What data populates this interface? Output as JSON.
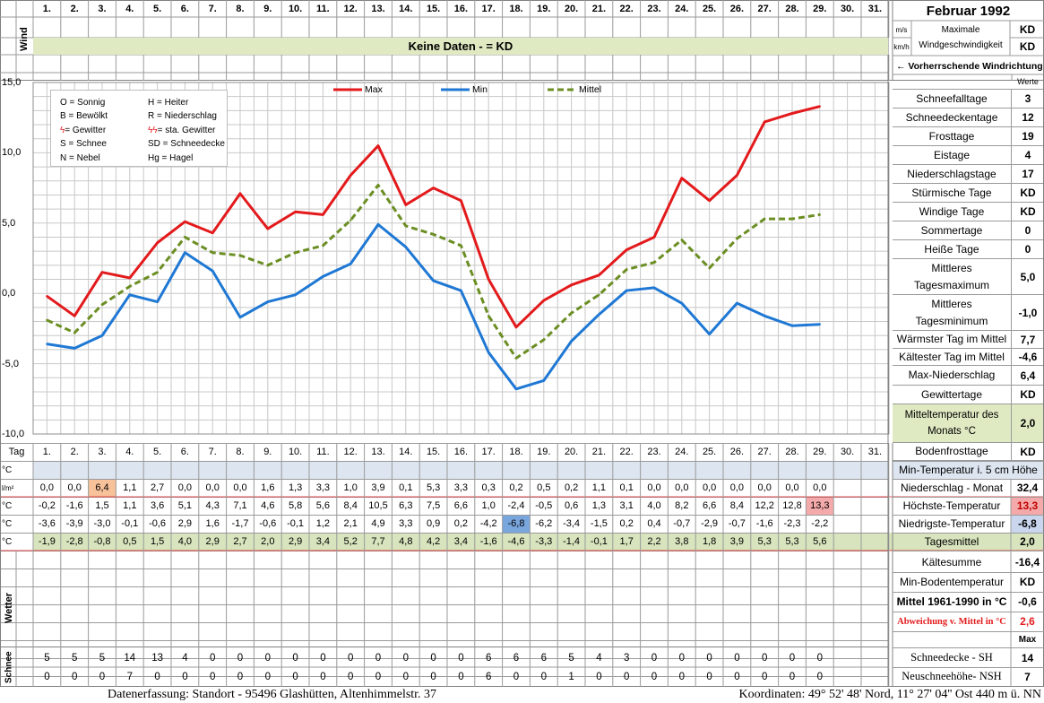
{
  "header": {
    "month_title": "Februar 1992",
    "wind_label": "Wind",
    "unit_ms": "m/s",
    "unit_kmh": "km/h",
    "max_wind_label": "Maximale Windgeschwindigkeit",
    "max_wind_value_1": "KD",
    "max_wind_value_2": "KD",
    "no_data_banner": "Keine Daten -  = KD",
    "prevailing_wind": "← Vorherrschende Windrichtung",
    "werte_label": "Werte"
  },
  "days": [
    "1.",
    "2.",
    "3.",
    "4.",
    "5.",
    "6.",
    "7.",
    "8.",
    "9.",
    "10.",
    "11.",
    "12.",
    "13.",
    "14.",
    "15.",
    "16.",
    "17.",
    "18.",
    "19.",
    "20.",
    "21.",
    "22.",
    "23.",
    "24.",
    "25.",
    "26.",
    "27.",
    "28.",
    "29.",
    "30.",
    "31."
  ],
  "legend_symbols": [
    {
      "left": "O = Sonnig",
      "right": "H = Heiter"
    },
    {
      "left": "B = Bewölkt",
      "right": "R = Niederschlag"
    },
    {
      "left": "= Gewitter",
      "right": "= sta. Gewitter"
    },
    {
      "left": "S = Schnee",
      "right": "SD = Schneedecke"
    },
    {
      "left": "N = Nebel",
      "right": "Hg = Hagel"
    }
  ],
  "colors": {
    "max": "#e31a1c",
    "min": "#1f78d4",
    "mean": "#6b8e23",
    "grid": "#c8c8c8"
  },
  "chart_data": {
    "type": "line",
    "x": [
      1,
      2,
      3,
      4,
      5,
      6,
      7,
      8,
      9,
      10,
      11,
      12,
      13,
      14,
      15,
      16,
      17,
      18,
      19,
      20,
      21,
      22,
      23,
      24,
      25,
      26,
      27,
      28,
      29
    ],
    "ylim": [
      -10,
      15
    ],
    "yticks": [
      "15,0",
      "10,0",
      "5,0",
      "0,0",
      "-5,0",
      "-10,0"
    ],
    "series": [
      {
        "name": "Max",
        "values": [
          -0.2,
          -1.6,
          1.5,
          1.1,
          3.6,
          5.1,
          4.3,
          7.1,
          4.6,
          5.8,
          5.6,
          8.4,
          10.5,
          6.3,
          7.5,
          6.6,
          1.0,
          -2.4,
          -0.5,
          0.6,
          1.3,
          3.1,
          4.0,
          8.2,
          6.6,
          8.4,
          12.2,
          12.8,
          13.3
        ]
      },
      {
        "name": "Min",
        "values": [
          -3.6,
          -3.9,
          -3.0,
          -0.1,
          -0.6,
          2.9,
          1.6,
          -1.7,
          -0.6,
          -0.1,
          1.2,
          2.1,
          4.9,
          3.3,
          0.9,
          0.2,
          -4.2,
          -6.8,
          -6.2,
          -3.4,
          -1.5,
          0.2,
          0.4,
          -0.7,
          -2.9,
          -0.7,
          -1.6,
          -2.3,
          -2.2
        ]
      },
      {
        "name": "Mittel",
        "values": [
          -1.9,
          -2.8,
          -0.8,
          0.5,
          1.5,
          4.0,
          2.9,
          2.7,
          2.0,
          2.9,
          3.4,
          5.2,
          7.7,
          4.8,
          4.2,
          3.4,
          -1.6,
          -4.6,
          -3.3,
          -1.4,
          -0.1,
          1.7,
          2.2,
          3.8,
          1.8,
          3.9,
          5.3,
          5.3,
          5.6
        ]
      }
    ]
  },
  "table": {
    "tag_label": "Tag",
    "rows": [
      {
        "unit": "°C",
        "label": "Min-Temperatur i. 5 cm Höhe",
        "values": [],
        "summary": ""
      },
      {
        "unit": "l/m²",
        "label": "Niederschlag - Monat",
        "values": [
          "0,0",
          "0,0",
          "6,4",
          "1,1",
          "2,7",
          "0,0",
          "0,0",
          "0,0",
          "1,6",
          "1,3",
          "3,3",
          "1,0",
          "3,9",
          "0,1",
          "5,3",
          "3,3",
          "0,3",
          "0,2",
          "0,5",
          "0,2",
          "1,1",
          "0,1",
          "0,0",
          "0,0",
          "0,0",
          "0,0",
          "0,0",
          "0,0",
          "0,0"
        ],
        "summary": "32,4"
      },
      {
        "unit": "°C",
        "label": "Höchste-Temperatur",
        "values": [
          "-0,2",
          "-1,6",
          "1,5",
          "1,1",
          "3,6",
          "5,1",
          "4,3",
          "7,1",
          "4,6",
          "5,8",
          "5,6",
          "8,4",
          "10,5",
          "6,3",
          "7,5",
          "6,6",
          "1,0",
          "-2,4",
          "-0,5",
          "0,6",
          "1,3",
          "3,1",
          "4,0",
          "8,2",
          "6,6",
          "8,4",
          "12,2",
          "12,8",
          "13,3"
        ],
        "summary": "13,3"
      },
      {
        "unit": "°C",
        "label": "Niedrigste-Temperatur",
        "values": [
          "-3,6",
          "-3,9",
          "-3,0",
          "-0,1",
          "-0,6",
          "2,9",
          "1,6",
          "-1,7",
          "-0,6",
          "-0,1",
          "1,2",
          "2,1",
          "4,9",
          "3,3",
          "0,9",
          "0,2",
          "-4,2",
          "-6,8",
          "-6,2",
          "-3,4",
          "-1,5",
          "0,2",
          "0,4",
          "-0,7",
          "-2,9",
          "-0,7",
          "-1,6",
          "-2,3",
          "-2,2"
        ],
        "summary": "-6,8"
      },
      {
        "unit": "°C",
        "label": "Tagesmittel",
        "values": [
          "-1,9",
          "-2,8",
          "-0,8",
          "0,5",
          "1,5",
          "4,0",
          "2,9",
          "2,7",
          "2,0",
          "2,9",
          "3,4",
          "5,2",
          "7,7",
          "4,8",
          "4,2",
          "3,4",
          "-1,6",
          "-4,6",
          "-3,3",
          "-1,4",
          "-0,1",
          "1,7",
          "2,2",
          "3,8",
          "1,8",
          "3,9",
          "5,3",
          "5,3",
          "5,6"
        ],
        "summary": "2,0"
      }
    ],
    "wetter_label": "Wetter",
    "schnee_label": "Schnee",
    "snow_rows": [
      {
        "label": "Schneedecke -  SH",
        "values": [
          "5",
          "5",
          "5",
          "14",
          "13",
          "4",
          "0",
          "0",
          "0",
          "0",
          "0",
          "0",
          "0",
          "0",
          "0",
          "0",
          "6",
          "6",
          "6",
          "5",
          "4",
          "3",
          "0",
          "0",
          "0",
          "0",
          "0",
          "0",
          "0"
        ],
        "summary": "14"
      },
      {
        "label": "Neuschneehöhe- NSH",
        "values": [
          "0",
          "0",
          "0",
          "7",
          "0",
          "0",
          "0",
          "0",
          "0",
          "0",
          "0",
          "0",
          "0",
          "0",
          "0",
          "0",
          "6",
          "0",
          "0",
          "1",
          "0",
          "0",
          "0",
          "0",
          "0",
          "0",
          "0",
          "0",
          "0"
        ],
        "summary": "7"
      }
    ],
    "extra_rows": [
      {
        "label": "Kältesumme",
        "value": "-16,4"
      },
      {
        "label": "Min-Bodentemperatur",
        "value": "KD"
      },
      {
        "label": "Mittel 1961-1990 in °C",
        "value": "-0,6"
      },
      {
        "label": "Abweichung v. Mittel in °C",
        "value": "2,6"
      },
      {
        "label": "",
        "value": "Max"
      }
    ]
  },
  "stats": [
    {
      "label": "Schneefalltage",
      "value": "3"
    },
    {
      "label": "Schneedeckentage",
      "value": "12"
    },
    {
      "label": "Frosttage",
      "value": "19"
    },
    {
      "label": "Eistage",
      "value": "4"
    },
    {
      "label": "Niederschlagstage",
      "value": "17"
    },
    {
      "label": "Stürmische Tage",
      "value": "KD"
    },
    {
      "label": "Windige Tage",
      "value": "KD"
    },
    {
      "label": "Sommertage",
      "value": "0"
    },
    {
      "label": "Heiße Tage",
      "value": "0"
    },
    {
      "label": "Mittleres Tagesmaximum",
      "value": "5,0"
    },
    {
      "label": "Mittleres Tagesminimum",
      "value": "-1,0"
    },
    {
      "label": "Wärmster Tag im Mittel",
      "value": "7,7"
    },
    {
      "label": "Kältester Tag im Mittel",
      "value": "-4,6"
    },
    {
      "label": "Max-Niederschlag",
      "value": "6,4"
    },
    {
      "label": "Gewittertage",
      "value": "KD"
    },
    {
      "label": "Mitteltemperatur des Monats °C",
      "value": "2,0"
    },
    {
      "label": "Bodenfrosttage",
      "value": "KD"
    }
  ],
  "footer": {
    "location": "Datenerfassung:  Standort -  95496  Glashütten, Altenhimmelstr. 37",
    "coords": "Koordinaten:  49° 52' 48' Nord,  11° 27' 04'' Ost   440 m ü. NN"
  }
}
